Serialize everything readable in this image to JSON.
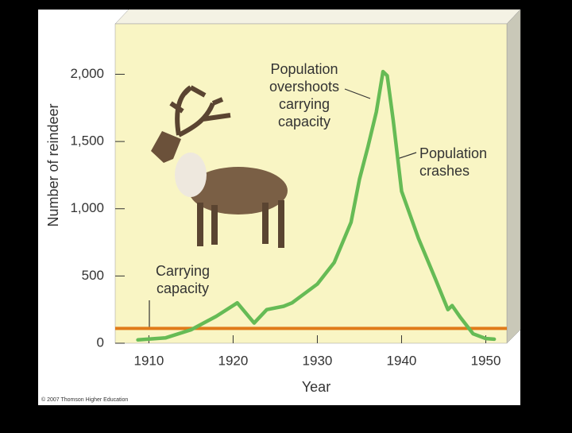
{
  "chart_data": {
    "type": "line",
    "xlabel": "Year",
    "ylabel": "Number of reindeer",
    "x": [
      1908.7,
      1912,
      1915,
      1918,
      1920.5,
      1922.5,
      1924,
      1926,
      1927,
      1930,
      1932,
      1934,
      1935,
      1936,
      1937,
      1937.8,
      1938.3,
      1939,
      1940,
      1942,
      1944,
      1945.5,
      1946,
      1947,
      1948.5,
      1950,
      1951
    ],
    "values": [
      25,
      40,
      100,
      200,
      300,
      150,
      250,
      275,
      300,
      440,
      600,
      900,
      1220,
      1460,
      1720,
      2020,
      1990,
      1660,
      1130,
      780,
      480,
      250,
      280,
      190,
      70,
      35,
      30
    ],
    "color": "#66bb55",
    "carrying_capacity": {
      "value": 110,
      "color": "#e07b1a"
    },
    "xlim": [
      1906,
      1952.5
    ],
    "ylim": [
      0,
      2375
    ],
    "xticks": [
      1910,
      1920,
      1930,
      1940,
      1950
    ],
    "yticks": [
      0,
      500,
      {
        "value": 1000,
        "label": "1,000"
      },
      {
        "value": 1500,
        "label": "1,500"
      },
      {
        "value": 2000,
        "label": "2,000"
      }
    ],
    "annotations": [
      {
        "lines": [
          "Population",
          "overshoots",
          "carrying",
          "capacity"
        ]
      },
      {
        "lines": [
          "Population",
          "crashes"
        ]
      },
      {
        "lines": [
          "Carrying",
          "capacity"
        ]
      }
    ],
    "credit": "© 2007 Thomson Higher Education"
  }
}
